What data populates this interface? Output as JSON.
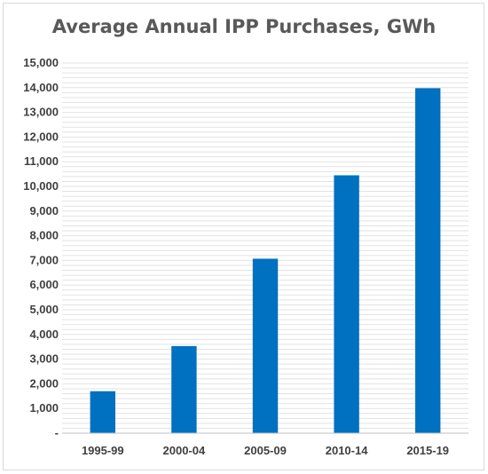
{
  "chart_data": {
    "type": "bar",
    "title": "Average Annual IPP Purchases, GWh",
    "categories": [
      "1995-99",
      "2000-04",
      "2005-09",
      "2010-14",
      "2015-19"
    ],
    "values": [
      1700,
      3530,
      7070,
      10450,
      13980
    ],
    "ylim": [
      0,
      15000
    ],
    "y_ticks": [
      0,
      1000,
      2000,
      3000,
      4000,
      5000,
      6000,
      7000,
      8000,
      9000,
      10000,
      11000,
      12000,
      13000,
      14000,
      15000
    ],
    "y_tick_labels": [
      "-",
      "1,000",
      "2,000",
      "3,000",
      "4,000",
      "5,000",
      "6,000",
      "7,000",
      "8,000",
      "9,000",
      "10,000",
      "11,000",
      "12,000",
      "13,000",
      "14,000",
      "15,000"
    ],
    "y_minor_step": 200,
    "grid": true,
    "bar_color": "#0070c0",
    "grid_color": "#e2e2e2",
    "axis_color": "#bfbfbf"
  }
}
